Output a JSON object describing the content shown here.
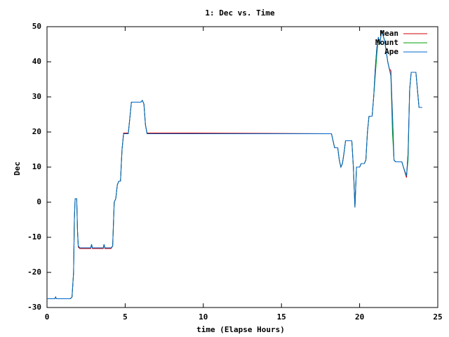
{
  "chart_data": {
    "type": "line",
    "title": "1: Dec vs. Time",
    "x_label": "time (Elapse Hours)",
    "y_label": "Dec",
    "x": [
      0,
      0.5,
      0.55,
      0.6,
      1.5,
      1.6,
      1.7,
      1.75,
      1.8,
      1.9,
      1.95,
      2.0,
      2.1,
      2.8,
      2.85,
      2.9,
      3.6,
      3.65,
      3.7,
      4.1,
      4.2,
      4.3,
      4.4,
      4.5,
      4.6,
      4.7,
      4.8,
      4.9,
      5.2,
      5.3,
      5.4,
      6.0,
      6.1,
      6.2,
      6.3,
      6.4,
      9.3,
      18.2,
      18.4,
      18.6,
      18.7,
      18.8,
      18.9,
      19.0,
      19.1,
      19.5,
      19.6,
      19.7,
      19.8,
      20.0,
      20.1,
      20.3,
      20.4,
      20.5,
      20.6,
      20.8,
      20.9,
      21.0,
      21.1,
      21.2,
      21.3,
      21.4,
      21.6,
      21.8,
      21.9,
      22.0,
      22.1,
      22.2,
      22.3,
      22.7,
      22.8,
      23.0,
      23.1,
      23.2,
      23.3,
      23.6,
      23.7,
      23.8,
      24.0
    ],
    "series": [
      {
        "name": "Mean",
        "color": "#cc0000",
        "values": [
          -27.5,
          -27.5,
          -27,
          -27.5,
          -27.5,
          -27,
          -20,
          -5,
          1,
          1,
          -8,
          -12.8,
          -13.2,
          -13.2,
          -12,
          -13.2,
          -13.2,
          -12,
          -13.2,
          -13.2,
          -12.5,
          0,
          1,
          5,
          6,
          6,
          15,
          19.7,
          19.7,
          24,
          28.5,
          28.5,
          29,
          28,
          22,
          19.7,
          19.7,
          19.5,
          15.5,
          15.5,
          12,
          10,
          11,
          14,
          17.5,
          17.5,
          10,
          -1.5,
          10,
          10,
          11,
          11,
          12,
          20,
          24.5,
          24.5,
          30,
          38,
          44,
          47,
          45,
          49,
          46,
          40,
          38,
          37.5,
          25,
          12,
          11.5,
          11.5,
          10,
          7,
          14,
          32,
          37,
          37,
          32,
          27,
          27
        ]
      },
      {
        "name": "Mount",
        "color": "#00a000",
        "values": [
          -27.5,
          -27.5,
          -27,
          -27.5,
          -27.5,
          -27,
          -20,
          -5,
          1,
          1,
          -8,
          -12.5,
          -13,
          -13,
          -12,
          -13,
          -13,
          -12,
          -13,
          -13,
          -12.5,
          0,
          1,
          5,
          6,
          6,
          15,
          19.5,
          19.5,
          24,
          28.5,
          28.5,
          29,
          28,
          22,
          19.5,
          19.5,
          19.5,
          15.5,
          15.5,
          12,
          10,
          11,
          14,
          17.5,
          17.5,
          10,
          -1.5,
          10,
          10,
          11,
          11,
          12,
          20,
          24.5,
          24.5,
          30,
          36,
          42,
          47,
          45,
          49,
          46,
          40,
          38,
          36,
          20,
          12,
          11.5,
          11.5,
          10,
          7.5,
          12,
          32,
          37,
          37,
          32,
          27,
          27
        ]
      },
      {
        "name": "Ape",
        "color": "#0066cc",
        "values": [
          -27.5,
          -27.5,
          -27,
          -27.5,
          -27.5,
          -27,
          -20,
          -5,
          1,
          1,
          -8,
          -12.5,
          -13,
          -13,
          -12,
          -13,
          -13,
          -12,
          -13,
          -13,
          -12.5,
          0,
          1,
          5,
          6,
          6,
          15,
          19.5,
          19.5,
          24,
          28.5,
          28.5,
          29,
          28,
          22,
          19.5,
          19.5,
          19.5,
          15.5,
          15.5,
          12,
          10,
          11,
          14,
          17.5,
          17.5,
          10,
          -1.5,
          10,
          10,
          11,
          11,
          12,
          20,
          24.5,
          24.5,
          30,
          38,
          44,
          47,
          45,
          49,
          46,
          40,
          38,
          36,
          25,
          12,
          11.5,
          11.5,
          10,
          7.5,
          14,
          32,
          37,
          37,
          32,
          27,
          27
        ]
      }
    ],
    "xlim": [
      0,
      25
    ],
    "xticks": [
      0,
      5,
      10,
      15,
      20,
      25
    ],
    "ylim": [
      -30,
      50
    ],
    "yticks": [
      -30,
      -20,
      -10,
      0,
      10,
      20,
      30,
      40,
      50
    ],
    "legend": "top-right"
  }
}
